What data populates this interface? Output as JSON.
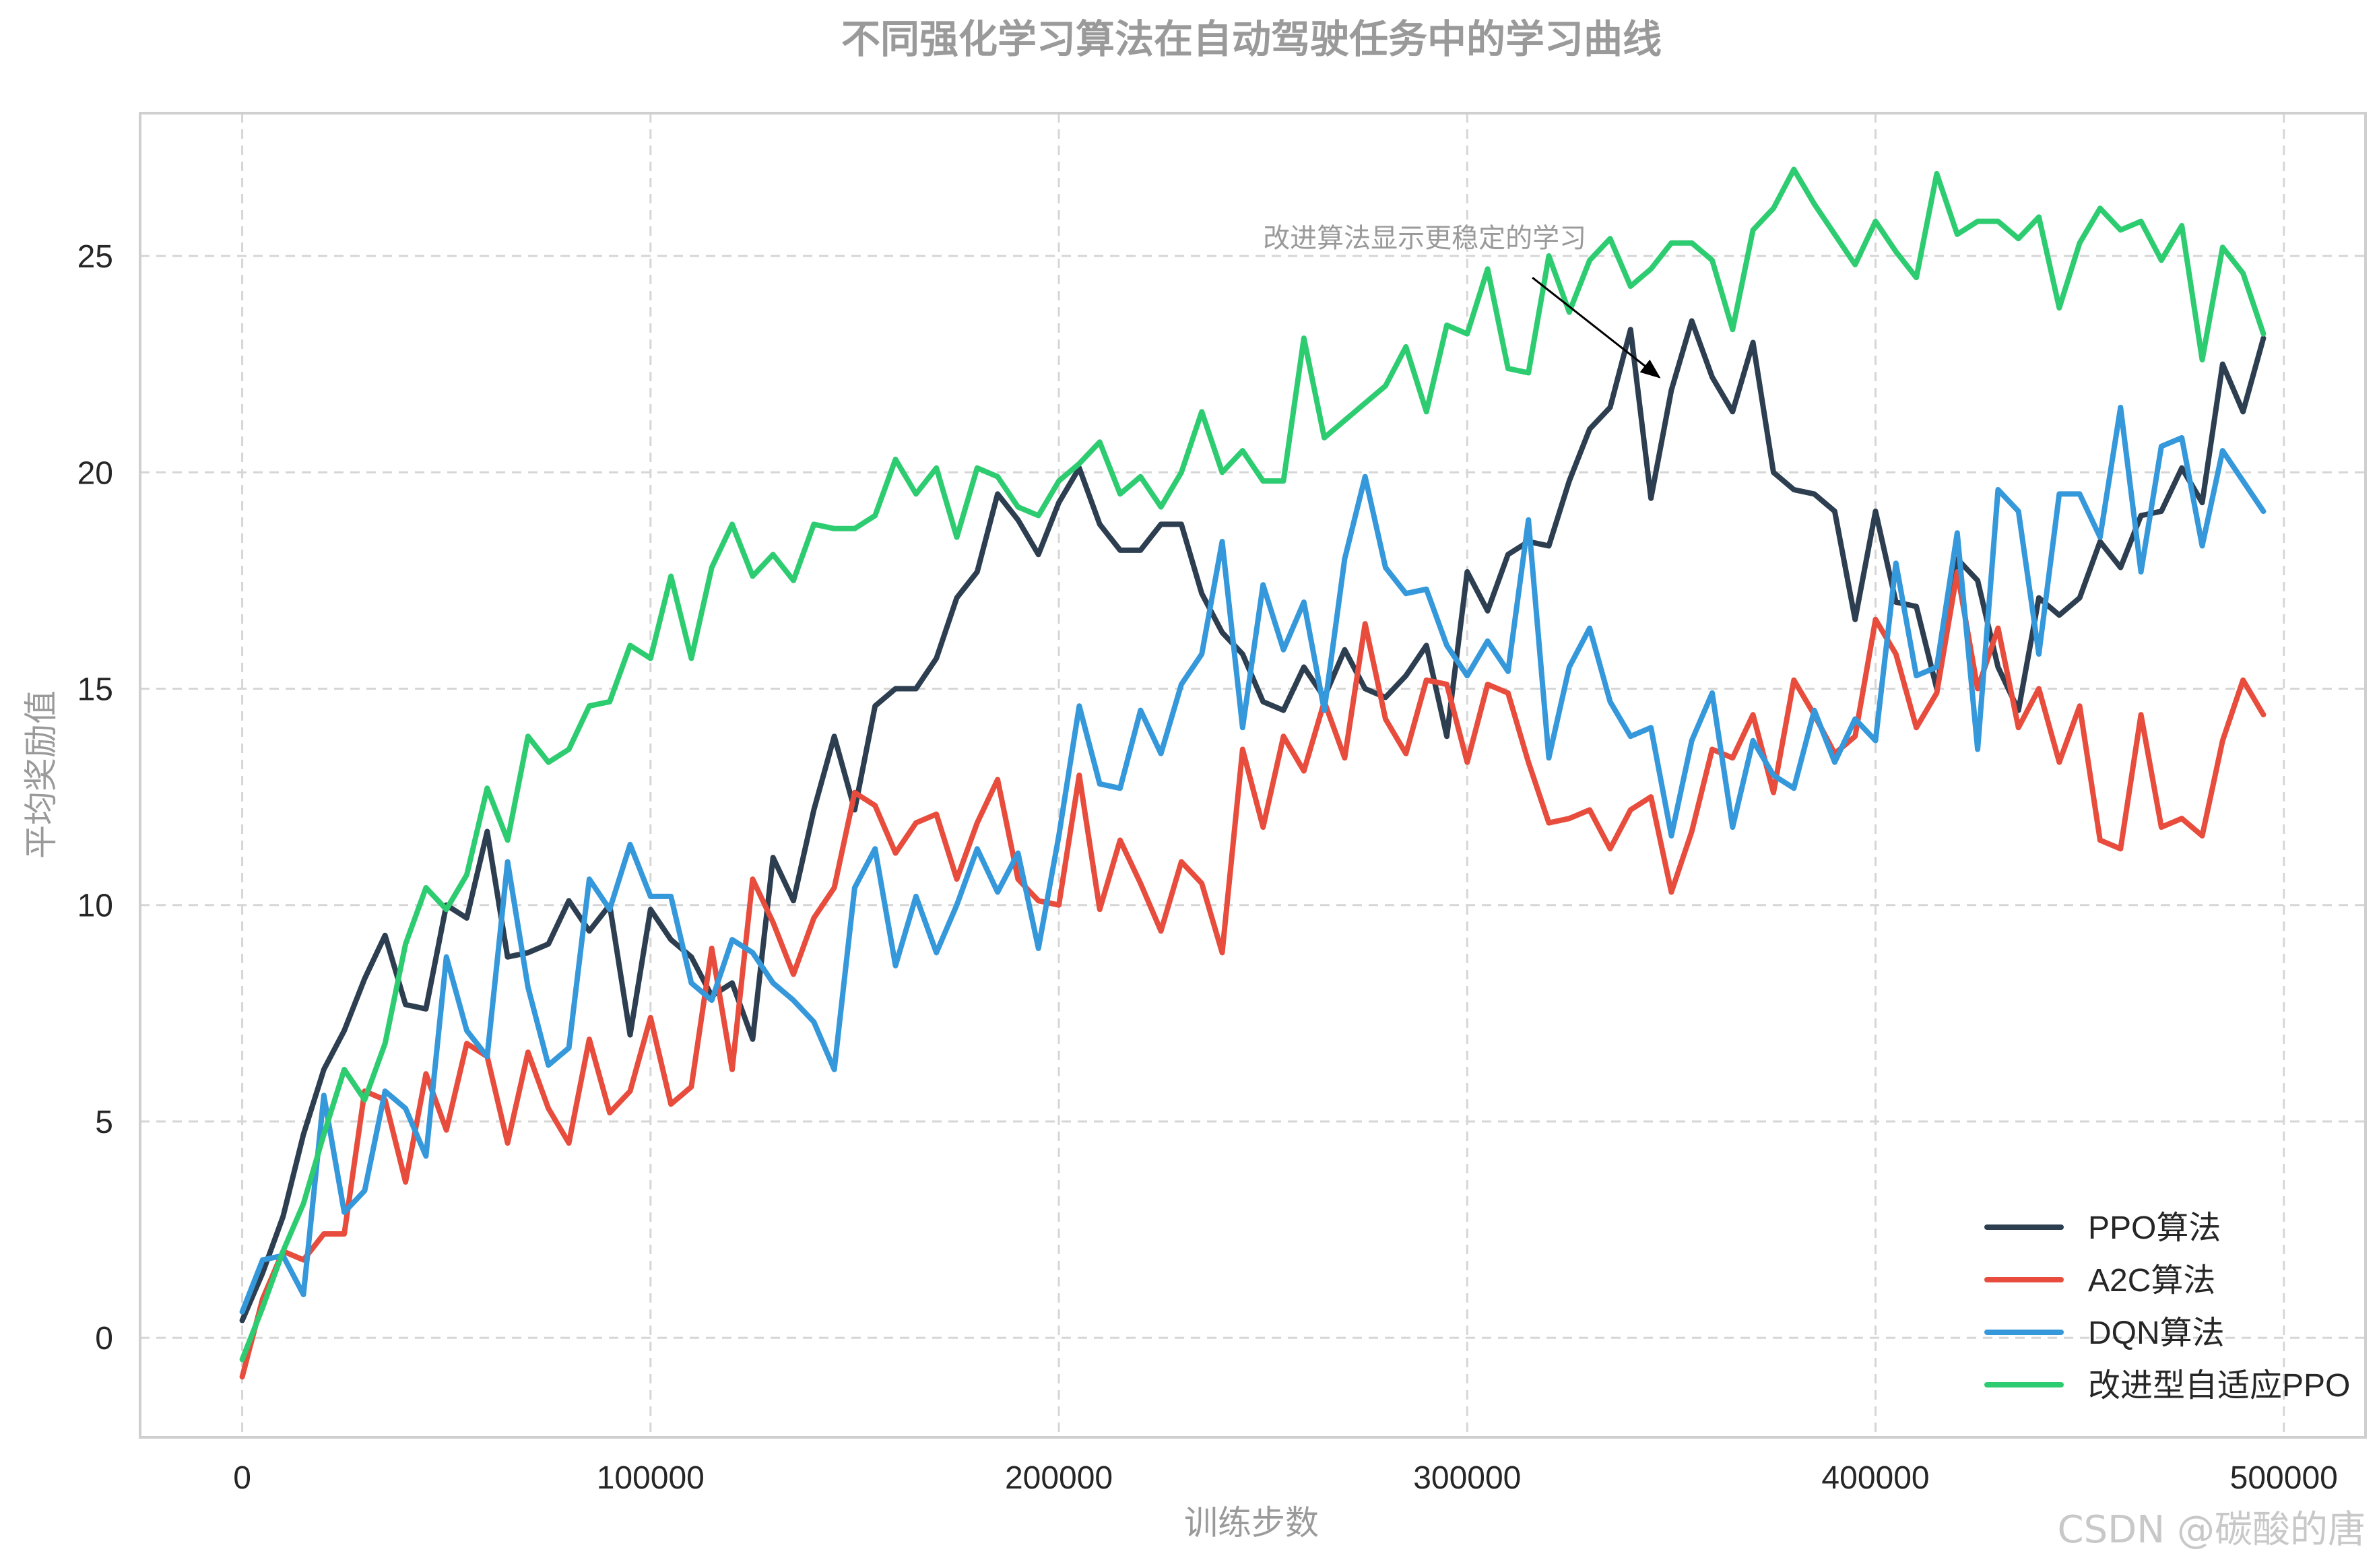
{
  "chart_data": {
    "type": "line",
    "title": "不同强化学习算法在自动驾驶任务中的学习曲线",
    "xlabel": "训练步数",
    "ylabel": "平均奖励值",
    "xlim": [
      -25000,
      520000
    ],
    "ylim": [
      -2.3,
      28.3
    ],
    "xticks": [
      0,
      100000,
      200000,
      300000,
      400000,
      500000
    ],
    "yticks": [
      0,
      5,
      10,
      15,
      20,
      25
    ],
    "grid": true,
    "legend_position": "bottom-right",
    "x_start": 0,
    "x_step": 5000,
    "series": [
      {
        "name": "PPO算法",
        "color": "#2c3e50",
        "values": [
          0.4,
          1.5,
          2.8,
          4.7,
          6.2,
          7.1,
          8.3,
          9.3,
          7.7,
          7.6,
          10.0,
          9.7,
          11.7,
          8.8,
          8.9,
          9.1,
          10.1,
          9.4,
          10.0,
          7.0,
          9.9,
          9.2,
          8.8,
          7.9,
          8.2,
          6.9,
          11.1,
          10.1,
          12.2,
          13.9,
          12.2,
          14.6,
          15.0,
          15.0,
          15.7,
          17.1,
          17.7,
          19.5,
          18.9,
          18.1,
          19.3,
          20.1,
          18.8,
          18.2,
          18.2,
          18.8,
          18.8,
          17.2,
          16.3,
          15.8,
          14.7,
          14.5,
          15.5,
          14.8,
          15.9,
          15.0,
          14.8,
          15.3,
          16.0,
          13.9,
          17.7,
          16.8,
          18.1,
          18.4,
          18.3,
          19.8,
          21.0,
          21.5,
          23.3,
          19.4,
          21.9,
          23.5,
          22.2,
          21.4,
          23.0,
          20.0,
          19.6,
          19.5,
          19.1,
          16.6,
          19.1,
          17.0,
          16.9,
          15.0,
          18.0,
          17.5,
          15.5,
          14.5,
          17.1,
          16.7,
          17.1,
          18.4,
          17.8,
          19.0,
          19.1,
          20.1,
          19.3,
          22.5,
          21.4,
          23.1
        ]
      },
      {
        "name": "A2C算法",
        "color": "#e74c3c",
        "values": [
          -0.9,
          0.9,
          2.0,
          1.8,
          2.4,
          2.4,
          5.7,
          5.5,
          3.6,
          6.1,
          4.8,
          6.8,
          6.5,
          4.5,
          6.6,
          5.3,
          4.5,
          6.9,
          5.2,
          5.7,
          7.4,
          5.4,
          5.8,
          9.0,
          6.2,
          10.6,
          9.6,
          8.4,
          9.7,
          10.4,
          12.6,
          12.3,
          11.2,
          11.9,
          12.1,
          10.6,
          11.9,
          12.9,
          10.6,
          10.1,
          10.0,
          13.0,
          9.9,
          11.5,
          10.5,
          9.4,
          11.0,
          10.5,
          8.9,
          13.6,
          11.8,
          13.9,
          13.1,
          14.7,
          13.4,
          16.5,
          14.3,
          13.5,
          15.2,
          15.1,
          13.3,
          15.1,
          14.9,
          13.3,
          11.9,
          12.0,
          12.2,
          11.3,
          12.2,
          12.5,
          10.3,
          11.7,
          13.6,
          13.4,
          14.4,
          12.6,
          15.2,
          14.4,
          13.5,
          13.9,
          16.6,
          15.8,
          14.1,
          14.9,
          17.7,
          15.0,
          16.4,
          14.1,
          15.0,
          13.3,
          14.6,
          11.5,
          11.3,
          14.4,
          11.8,
          12.0,
          11.6,
          13.8,
          15.2,
          14.4
        ]
      },
      {
        "name": "DQN算法",
        "color": "#3498db",
        "values": [
          0.6,
          1.8,
          1.9,
          1.0,
          5.6,
          2.9,
          3.4,
          5.7,
          5.3,
          4.2,
          8.8,
          7.1,
          6.5,
          11.0,
          8.1,
          6.3,
          6.7,
          10.6,
          9.9,
          11.4,
          10.2,
          10.2,
          8.2,
          7.8,
          9.2,
          8.9,
          8.2,
          7.8,
          7.3,
          6.2,
          10.4,
          11.3,
          8.6,
          10.2,
          8.9,
          10.0,
          11.3,
          10.3,
          11.2,
          9.0,
          11.6,
          14.6,
          12.8,
          12.7,
          14.5,
          13.5,
          15.1,
          15.8,
          18.4,
          14.1,
          17.4,
          15.9,
          17.0,
          14.5,
          18.0,
          19.9,
          17.8,
          17.2,
          17.3,
          16.0,
          15.3,
          16.1,
          15.4,
          18.9,
          13.4,
          15.5,
          16.4,
          14.7,
          13.9,
          14.1,
          11.6,
          13.8,
          14.9,
          11.8,
          13.8,
          13.0,
          12.7,
          14.5,
          13.3,
          14.3,
          13.8,
          17.9,
          15.3,
          15.5,
          18.6,
          13.6,
          19.6,
          19.1,
          15.8,
          19.5,
          19.5,
          18.5,
          21.5,
          17.7,
          20.6,
          20.8,
          18.3,
          20.5,
          19.8,
          19.1
        ]
      },
      {
        "name": "改进型自适应PPO",
        "color": "#2ecc71",
        "values": [
          -0.5,
          0.7,
          2.0,
          3.1,
          4.7,
          6.2,
          5.5,
          6.8,
          9.1,
          10.4,
          9.9,
          10.7,
          12.7,
          11.5,
          13.9,
          13.3,
          13.6,
          14.6,
          14.7,
          16.0,
          15.7,
          17.6,
          15.7,
          17.8,
          18.8,
          17.6,
          18.1,
          17.5,
          18.8,
          18.7,
          18.7,
          19.0,
          20.3,
          19.5,
          20.1,
          18.5,
          20.1,
          19.9,
          19.2,
          19.0,
          19.8,
          20.2,
          20.7,
          19.5,
          19.9,
          19.2,
          20.0,
          21.4,
          20.0,
          20.5,
          19.8,
          19.8,
          23.1,
          20.8,
          21.2,
          21.6,
          22.0,
          22.9,
          21.4,
          23.4,
          23.2,
          24.7,
          22.4,
          22.3,
          25.0,
          23.7,
          24.9,
          25.4,
          24.3,
          24.7,
          25.3,
          25.3,
          24.9,
          23.3,
          25.6,
          26.1,
          27.0,
          26.2,
          25.5,
          24.8,
          25.8,
          25.1,
          24.5,
          26.9,
          25.5,
          25.8,
          25.8,
          25.4,
          25.9,
          23.8,
          25.3,
          26.1,
          25.6,
          25.8,
          24.9,
          25.7,
          22.6,
          25.2,
          24.6,
          23.2
        ]
      }
    ],
    "annotation": {
      "text": "改进算法显示更稳定的学习",
      "x_text": 250000,
      "y_text": 25.2,
      "x_point": 347000,
      "y_point": 22.2
    }
  },
  "watermark": "CSDN @碳酸的唐"
}
